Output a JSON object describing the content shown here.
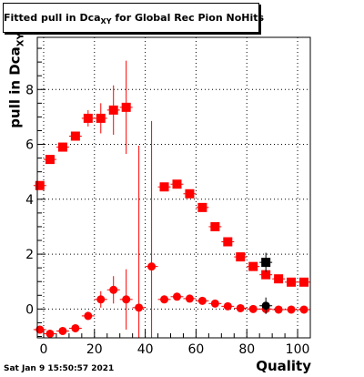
{
  "title": {
    "prefix": "Fitted pull in Dca",
    "sub": "XY",
    "suffix": " for Global Rec Pion NoHits"
  },
  "timestamp": "Sat Jan  9 15:50:57 2021",
  "chart_data": {
    "type": "scatter",
    "title": "Fitted pull in Dca_XY for Global Rec Pion NoHits",
    "xlabel": "Quality",
    "ylabel": "pull in Dca_XY",
    "ylabel_main": "pull in Dca",
    "ylabel_sub": "XY",
    "xlim": [
      -2.5,
      105
    ],
    "ylim": [
      -1.05,
      9.9
    ],
    "x_ticks": [
      0,
      20,
      40,
      60,
      80,
      100
    ],
    "y_ticks": [
      0,
      2,
      4,
      6,
      8
    ],
    "grid": true,
    "series": [
      {
        "marker": "square",
        "color": "#ff0000",
        "points": [
          {
            "x": -1.5,
            "y": 4.5,
            "err": 0
          },
          {
            "x": 2.5,
            "y": 5.45,
            "err": 0
          },
          {
            "x": 7.5,
            "y": 5.9,
            "err": 0
          },
          {
            "x": 12.5,
            "y": 6.3,
            "err": 0
          },
          {
            "x": 17.5,
            "y": 6.95,
            "err": 0.3
          },
          {
            "x": 22.5,
            "y": 6.95,
            "err": 0.55
          },
          {
            "x": 27.5,
            "y": 7.25,
            "err": 0.9
          },
          {
            "x": 32.5,
            "y": 7.35,
            "err": 1.7
          },
          {
            "x": 47.5,
            "y": 4.45,
            "err": 0
          },
          {
            "x": 52.5,
            "y": 4.55,
            "err": 0
          },
          {
            "x": 57.5,
            "y": 4.2,
            "err": 0
          },
          {
            "x": 62.5,
            "y": 3.7,
            "err": 0
          },
          {
            "x": 67.5,
            "y": 3.0,
            "err": 0
          },
          {
            "x": 72.5,
            "y": 2.45,
            "err": 0
          },
          {
            "x": 77.5,
            "y": 1.9,
            "err": 0
          },
          {
            "x": 82.5,
            "y": 1.55,
            "err": 0
          },
          {
            "x": 87.5,
            "y": 1.25,
            "err": 0
          },
          {
            "x": 92.5,
            "y": 1.1,
            "err": 0
          },
          {
            "x": 97.5,
            "y": 0.98,
            "err": 0
          },
          {
            "x": 102.5,
            "y": 0.98,
            "err": 0
          }
        ]
      },
      {
        "marker": "circle",
        "color": "#ff0000",
        "points": [
          {
            "x": -1.5,
            "y": -0.75,
            "err": 0
          },
          {
            "x": 2.5,
            "y": -0.9,
            "err": 0
          },
          {
            "x": 7.5,
            "y": -0.8,
            "err": 0
          },
          {
            "x": 12.5,
            "y": -0.7,
            "err": 0
          },
          {
            "x": 17.5,
            "y": -0.25,
            "err": 0.15
          },
          {
            "x": 22.5,
            "y": 0.35,
            "err": 0.3
          },
          {
            "x": 27.5,
            "y": 0.7,
            "err": 0.5
          },
          {
            "x": 32.5,
            "y": 0.35,
            "err": 1.1
          },
          {
            "x": 37.5,
            "y": 0.05,
            "err": 5.9
          },
          {
            "x": 42.5,
            "y": 1.55,
            "err": 5.3
          },
          {
            "x": 47.5,
            "y": 0.35,
            "err": 0
          },
          {
            "x": 52.5,
            "y": 0.45,
            "err": 0
          },
          {
            "x": 57.5,
            "y": 0.38,
            "err": 0
          },
          {
            "x": 62.5,
            "y": 0.3,
            "err": 0
          },
          {
            "x": 67.5,
            "y": 0.2,
            "err": 0
          },
          {
            "x": 72.5,
            "y": 0.1,
            "err": 0
          },
          {
            "x": 77.5,
            "y": 0.03,
            "err": 0
          },
          {
            "x": 82.5,
            "y": 0.0,
            "err": 0
          },
          {
            "x": 87.5,
            "y": 0.0,
            "err": 0
          },
          {
            "x": 92.5,
            "y": -0.02,
            "err": 0
          },
          {
            "x": 97.5,
            "y": -0.02,
            "err": 0
          },
          {
            "x": 102.5,
            "y": -0.02,
            "err": 0
          }
        ]
      },
      {
        "marker": "square",
        "color": "#000000",
        "points": [
          {
            "x": 87.5,
            "y": 1.7,
            "err": 0.35
          }
        ]
      },
      {
        "marker": "circle",
        "color": "#000000",
        "points": [
          {
            "x": 87.5,
            "y": 0.12,
            "err": 0.3
          }
        ]
      }
    ]
  }
}
